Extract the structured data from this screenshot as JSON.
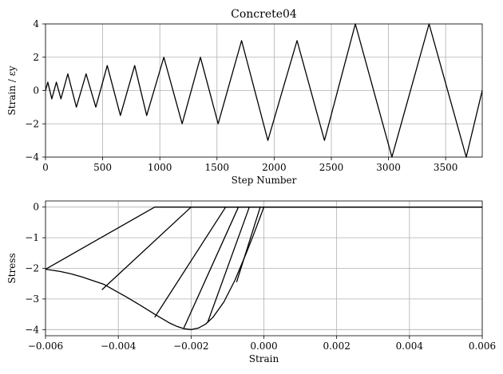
{
  "chart_data": [
    {
      "type": "line",
      "title": "Concrete04",
      "xlabel": "Step Number",
      "ylabel": "Strain / εy",
      "xlim": [
        0,
        3820
      ],
      "ylim": [
        -4,
        4
      ],
      "xticks": [
        0,
        500,
        1000,
        1500,
        2000,
        2500,
        3000,
        3500
      ],
      "yticks": [
        -4,
        -2,
        0,
        2,
        4
      ],
      "grid": true,
      "series": [
        {
          "x": [
            0,
            20,
            55,
            95,
            135,
            195,
            270,
            355,
            440,
            540,
            655,
            780,
            885,
            1035,
            1195,
            1355,
            1510,
            1715,
            1945,
            2200,
            2440,
            2710,
            3030,
            3355,
            3680,
            3820
          ],
          "values": [
            0,
            0.5,
            -0.5,
            0.5,
            -0.5,
            1,
            -1,
            1,
            -1,
            1.5,
            -1.5,
            1.5,
            -1.5,
            2,
            -2,
            2,
            -2,
            3,
            -3,
            3,
            -3,
            4,
            -4,
            4,
            -4,
            0
          ]
        }
      ]
    },
    {
      "type": "line",
      "title": "",
      "xlabel": "Strain",
      "ylabel": "Stress",
      "xlim": [
        -0.006,
        0.006
      ],
      "ylim": [
        -4.2,
        0.2
      ],
      "xticks": [
        -0.006,
        -0.004,
        -0.002,
        0.0,
        0.002,
        0.004,
        0.006
      ],
      "xtick_labels": [
        "−0.006",
        "−0.004",
        "−0.002",
        "0.000",
        "0.002",
        "0.004",
        "0.006"
      ],
      "yticks": [
        0,
        -1,
        -2,
        -3,
        -4
      ],
      "ytick_labels": [
        "0",
        "−1",
        "−2",
        "−3",
        "−4"
      ],
      "grid": true,
      "series": [
        {
          "x": [
            0,
            -0.0001,
            -0.0003,
            -0.0005,
            -0.0008,
            -0.0011,
            -0.0014,
            -0.0016,
            -0.0018,
            -0.002,
            -0.0022,
            -0.0024,
            -0.0026,
            -0.0028,
            -0.003,
            -0.0032,
            -0.0035,
            -0.0038,
            -0.0041,
            -0.0044,
            -0.0047,
            -0.005,
            -0.0053,
            -0.0056,
            -0.006
          ],
          "values": [
            0,
            -0.32,
            -0.95,
            -1.55,
            -2.4,
            -3.1,
            -3.6,
            -3.82,
            -3.95,
            -4.0,
            -3.97,
            -3.89,
            -3.78,
            -3.64,
            -3.5,
            -3.35,
            -3.13,
            -2.92,
            -2.72,
            -2.52,
            -2.4,
            -2.28,
            -2.18,
            -2.1,
            -2.03
          ]
        },
        {
          "x": [
            0,
            0.006
          ],
          "values": [
            0,
            0
          ]
        },
        {
          "x": [
            -0.006,
            -0.003,
            0.006
          ],
          "values": [
            -2.03,
            0,
            0
          ]
        },
        {
          "x": [
            -0.00445,
            -0.002,
            0.006
          ],
          "values": [
            -2.7,
            0,
            0
          ]
        },
        {
          "x": [
            -0.003,
            -0.00105,
            0.006
          ],
          "values": [
            -3.6,
            0,
            0
          ]
        },
        {
          "x": [
            -0.0022,
            -0.0007,
            0.006
          ],
          "values": [
            -3.95,
            0,
            0
          ]
        },
        {
          "x": [
            -0.00155,
            -0.0004,
            0.006
          ],
          "values": [
            -3.78,
            0,
            0
          ]
        },
        {
          "x": [
            -0.00075,
            -0.0001,
            0.006
          ],
          "values": [
            -2.45,
            0,
            0
          ]
        }
      ]
    }
  ]
}
